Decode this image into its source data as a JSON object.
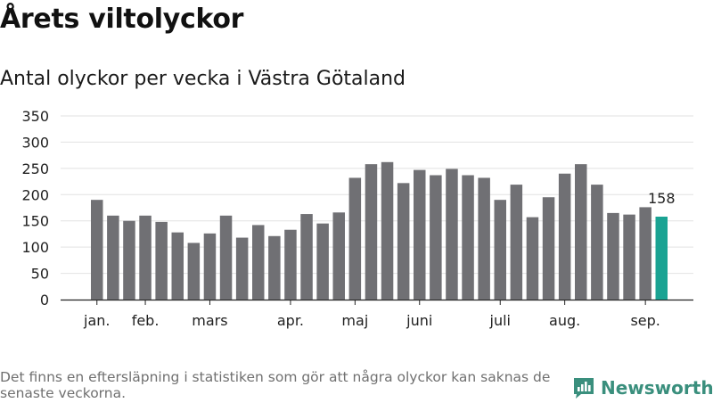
{
  "title": "Årets viltolyckor",
  "subtitle": "Antal olyckor per vecka i Västra Götaland",
  "footnote": "Det finns en eftersläpning i statistiken som gör att några olyckor kan saknas de senaste veckorna.",
  "brand": {
    "name": "Newsworthy",
    "icon": "newsworthy-logo-icon"
  },
  "colors": {
    "bar": "#707074",
    "highlight": "#1aa393",
    "grid": "#e2e2e2",
    "axis": "#222222",
    "brand": "#3a8f7d"
  },
  "chart_data": {
    "type": "bar",
    "title": "Antal olyckor per vecka i Västra Götaland",
    "xlabel": "",
    "ylabel": "",
    "ylim": [
      0,
      350
    ],
    "yticks": [
      0,
      50,
      100,
      150,
      200,
      250,
      300,
      350
    ],
    "grid": true,
    "values": [
      190,
      160,
      150,
      160,
      148,
      128,
      108,
      126,
      160,
      118,
      142,
      121,
      133,
      163,
      145,
      166,
      232,
      258,
      262,
      222,
      247,
      237,
      249,
      237,
      232,
      190,
      219,
      157,
      195,
      240,
      258,
      219,
      165,
      162,
      176,
      158
    ],
    "highlight_index": 35,
    "highlight_label": "158",
    "month_labels": [
      {
        "label": "jan.",
        "bar_index": 0
      },
      {
        "label": "feb.",
        "bar_index": 3
      },
      {
        "label": "mars",
        "bar_index": 7
      },
      {
        "label": "apr.",
        "bar_index": 12
      },
      {
        "label": "maj",
        "bar_index": 16
      },
      {
        "label": "juni",
        "bar_index": 20
      },
      {
        "label": "juli",
        "bar_index": 25
      },
      {
        "label": "aug.",
        "bar_index": 29
      },
      {
        "label": "sep.",
        "bar_index": 34
      }
    ]
  }
}
